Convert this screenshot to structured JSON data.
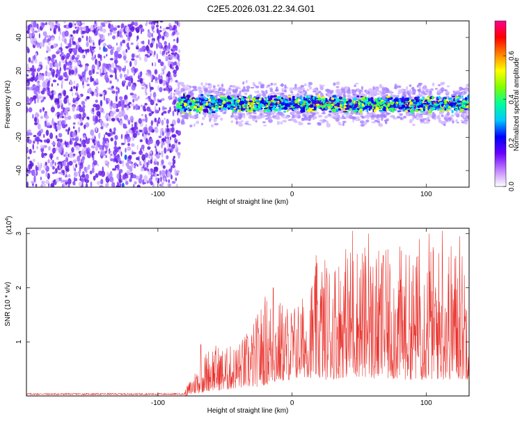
{
  "title": "C2E5.2026.031.22.34.G01",
  "chart_data": [
    {
      "type": "heatmap",
      "name": "spectrogram",
      "xlabel": "Height of straight line (km)",
      "ylabel": "Frequency (Hz)",
      "xlim": [
        -198,
        132
      ],
      "ylim": [
        -50,
        50
      ],
      "xticks": [
        -100,
        0,
        100
      ],
      "yticks": [
        -40,
        -20,
        0,
        20,
        40
      ],
      "signal_start_km": -85,
      "signal_center_hz": 0,
      "noise_region_km": [
        -198,
        -84
      ],
      "colorbar": {
        "label": "Normalized spectral amplitude",
        "range": [
          0.0,
          0.76
        ],
        "ticks": [
          "0.0",
          "0.2",
          "0.4",
          "0.6"
        ],
        "colors": [
          "#ffffff",
          "#c080ff",
          "#6a00ff",
          "#0000ff",
          "#00c8ff",
          "#00ff9a",
          "#80ff00",
          "#ffff00",
          "#ff8000",
          "#ff0000",
          "#ff0090"
        ]
      }
    },
    {
      "type": "line",
      "name": "snr",
      "xlabel": "Height of straight line (km)",
      "ylabel": "SNR (10 * v/v)",
      "scale_label": "(x10",
      "scale_exponent": "4",
      "xlim": [
        -198,
        132
      ],
      "ylim": [
        0,
        3.1
      ],
      "xticks": [
        -100,
        0,
        100
      ],
      "yticks": [
        1,
        2,
        3
      ],
      "color": "#e8302a",
      "envelope": {
        "x": [
          -198,
          -90,
          -80,
          -70,
          -60,
          -50,
          -40,
          -30,
          -20,
          -10,
          0,
          10,
          20,
          30,
          40,
          50,
          60,
          70,
          80,
          90,
          100,
          110,
          120,
          132
        ],
        "low": [
          0.0,
          0.0,
          0.0,
          0.05,
          0.1,
          0.1,
          0.15,
          0.15,
          0.2,
          0.25,
          0.3,
          0.35,
          0.3,
          0.3,
          0.35,
          0.35,
          0.3,
          0.3,
          0.3,
          0.3,
          0.3,
          0.3,
          0.3,
          0.3
        ],
        "high": [
          0.05,
          0.05,
          0.1,
          0.6,
          1.0,
          0.9,
          1.0,
          1.3,
          1.9,
          1.8,
          1.7,
          1.9,
          2.6,
          2.6,
          2.8,
          2.9,
          2.7,
          2.7,
          2.8,
          2.6,
          2.9,
          2.8,
          2.9,
          2.6
        ]
      },
      "peaks": [
        {
          "x": -68,
          "y": 0.95
        },
        {
          "x": -40,
          "y": 0.85
        },
        {
          "x": -14,
          "y": 2.0
        },
        {
          "x": 18,
          "y": 2.6
        },
        {
          "x": 45,
          "y": 3.05
        },
        {
          "x": 57,
          "y": 3.0
        },
        {
          "x": 68,
          "y": 2.6
        },
        {
          "x": 95,
          "y": 2.9
        },
        {
          "x": 102,
          "y": 3.0
        },
        {
          "x": 112,
          "y": 3.05
        },
        {
          "x": 125,
          "y": 2.95
        }
      ]
    }
  ]
}
